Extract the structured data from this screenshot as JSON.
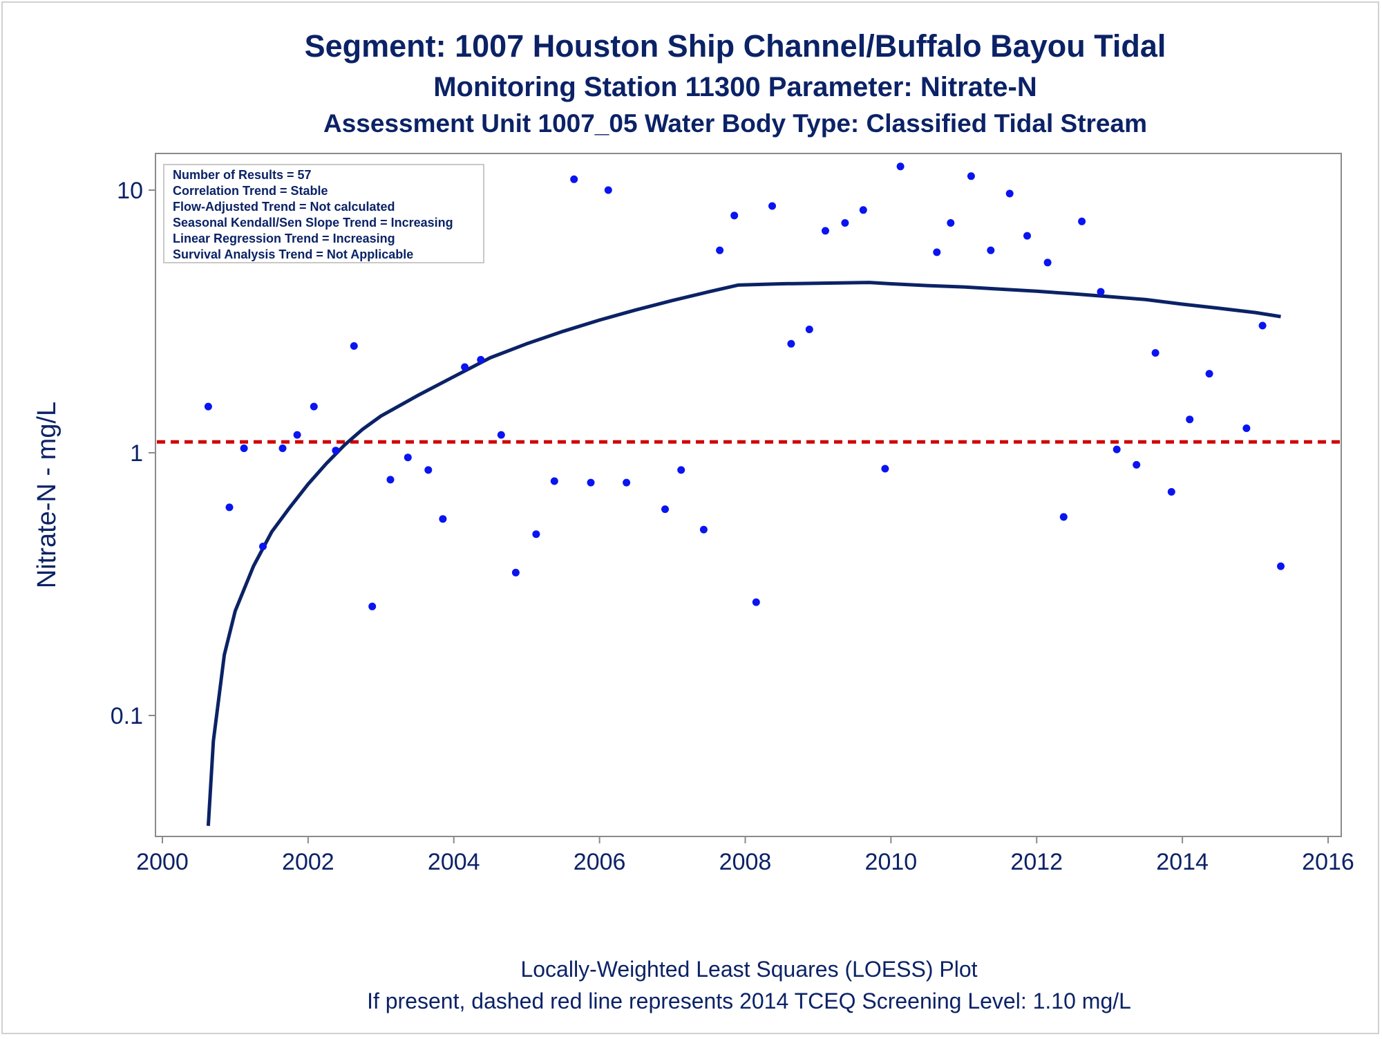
{
  "chart_data": {
    "type": "scatter",
    "title": "Segment: 1007  Houston Ship Channel/Buffalo Bayou Tidal",
    "subtitle": "Monitoring Station 11300 Parameter: Nitrate-N",
    "subtitle2": "Assessment Unit 1007_05   Water Body Type: Classified Tidal Stream",
    "ylabel": "Nitrate-N - mg/L",
    "xlabel": "",
    "xlim": [
      2000,
      2016
    ],
    "ylim": [
      0.038,
      14
    ],
    "yscale": "log",
    "x_ticks": [
      "2000",
      "2002",
      "2004",
      "2006",
      "2008",
      "2010",
      "2012",
      "2014",
      "2016"
    ],
    "y_ticks": [
      {
        "value": 0.1,
        "label": "0.1"
      },
      {
        "value": 1,
        "label": "1"
      },
      {
        "value": 10,
        "label": "10"
      }
    ],
    "grid": false,
    "footnote1": "Locally-Weighted Least Squares (LOESS) Plot",
    "footnote2": "If present, dashed red line represents 2014 TCEQ Screening Level: 1.10 mg/L",
    "screening_level": 1.1,
    "inset": [
      "Number of Results = 57",
      "Correlation Trend = Stable",
      "Flow-Adjusted Trend = Not calculated",
      "Seasonal Kendall/Sen Slope Trend = Increasing",
      "Linear Regression Trend = Increasing",
      "Survival Analysis Trend = Not Applicable"
    ],
    "points": [
      {
        "x": 2000.63,
        "y": 1.5
      },
      {
        "x": 2000.92,
        "y": 0.62
      },
      {
        "x": 2001.12,
        "y": 1.04
      },
      {
        "x": 2001.38,
        "y": 0.44
      },
      {
        "x": 2001.65,
        "y": 1.04
      },
      {
        "x": 2001.85,
        "y": 1.17
      },
      {
        "x": 2002.08,
        "y": 1.5
      },
      {
        "x": 2002.38,
        "y": 1.02
      },
      {
        "x": 2002.63,
        "y": 2.55
      },
      {
        "x": 2002.88,
        "y": 0.26
      },
      {
        "x": 2003.13,
        "y": 0.79
      },
      {
        "x": 2003.37,
        "y": 0.96
      },
      {
        "x": 2003.65,
        "y": 0.86
      },
      {
        "x": 2003.85,
        "y": 0.56
      },
      {
        "x": 2004.15,
        "y": 2.12
      },
      {
        "x": 2004.37,
        "y": 2.26
      },
      {
        "x": 2004.65,
        "y": 1.17
      },
      {
        "x": 2004.85,
        "y": 0.35
      },
      {
        "x": 2005.13,
        "y": 0.49
      },
      {
        "x": 2005.38,
        "y": 0.78
      },
      {
        "x": 2005.65,
        "y": 11.0
      },
      {
        "x": 2005.88,
        "y": 0.77
      },
      {
        "x": 2006.12,
        "y": 10.0
      },
      {
        "x": 2006.37,
        "y": 0.77
      },
      {
        "x": 2006.9,
        "y": 0.61
      },
      {
        "x": 2007.12,
        "y": 0.86
      },
      {
        "x": 2007.43,
        "y": 0.51
      },
      {
        "x": 2007.65,
        "y": 5.9
      },
      {
        "x": 2007.85,
        "y": 8.0
      },
      {
        "x": 2008.15,
        "y": 0.27
      },
      {
        "x": 2008.37,
        "y": 8.7
      },
      {
        "x": 2008.63,
        "y": 2.6
      },
      {
        "x": 2008.88,
        "y": 2.95
      },
      {
        "x": 2009.1,
        "y": 7.0
      },
      {
        "x": 2009.37,
        "y": 7.5
      },
      {
        "x": 2009.62,
        "y": 8.4
      },
      {
        "x": 2009.92,
        "y": 0.87
      },
      {
        "x": 2010.13,
        "y": 12.3
      },
      {
        "x": 2010.63,
        "y": 5.8
      },
      {
        "x": 2010.82,
        "y": 7.5
      },
      {
        "x": 2011.1,
        "y": 11.3
      },
      {
        "x": 2011.37,
        "y": 5.9
      },
      {
        "x": 2011.63,
        "y": 9.7
      },
      {
        "x": 2011.87,
        "y": 6.7
      },
      {
        "x": 2012.15,
        "y": 5.3
      },
      {
        "x": 2012.37,
        "y": 0.57
      },
      {
        "x": 2012.62,
        "y": 7.6
      },
      {
        "x": 2012.88,
        "y": 4.1
      },
      {
        "x": 2013.1,
        "y": 1.03
      },
      {
        "x": 2013.37,
        "y": 0.9
      },
      {
        "x": 2013.63,
        "y": 2.4
      },
      {
        "x": 2013.85,
        "y": 0.71
      },
      {
        "x": 2014.1,
        "y": 1.34
      },
      {
        "x": 2014.37,
        "y": 2.0
      },
      {
        "x": 2014.88,
        "y": 1.24
      },
      {
        "x": 2015.1,
        "y": 3.05
      },
      {
        "x": 2015.35,
        "y": 0.37
      }
    ],
    "loess": [
      {
        "x": 2000.63,
        "y": 0.038
      },
      {
        "x": 2000.7,
        "y": 0.08
      },
      {
        "x": 2000.85,
        "y": 0.17
      },
      {
        "x": 2001.0,
        "y": 0.25
      },
      {
        "x": 2001.25,
        "y": 0.37
      },
      {
        "x": 2001.5,
        "y": 0.5
      },
      {
        "x": 2001.75,
        "y": 0.62
      },
      {
        "x": 2002.0,
        "y": 0.76
      },
      {
        "x": 2002.25,
        "y": 0.91
      },
      {
        "x": 2002.5,
        "y": 1.07
      },
      {
        "x": 2002.75,
        "y": 1.23
      },
      {
        "x": 2003.0,
        "y": 1.38
      },
      {
        "x": 2003.5,
        "y": 1.65
      },
      {
        "x": 2004.0,
        "y": 1.95
      },
      {
        "x": 2004.5,
        "y": 2.3
      },
      {
        "x": 2005.0,
        "y": 2.6
      },
      {
        "x": 2005.5,
        "y": 2.9
      },
      {
        "x": 2006.0,
        "y": 3.2
      },
      {
        "x": 2006.5,
        "y": 3.5
      },
      {
        "x": 2007.0,
        "y": 3.8
      },
      {
        "x": 2007.5,
        "y": 4.1
      },
      {
        "x": 2007.9,
        "y": 4.35
      },
      {
        "x": 2008.5,
        "y": 4.4
      },
      {
        "x": 2009.0,
        "y": 4.42
      },
      {
        "x": 2009.7,
        "y": 4.45
      },
      {
        "x": 2010.0,
        "y": 4.4
      },
      {
        "x": 2010.5,
        "y": 4.33
      },
      {
        "x": 2011.0,
        "y": 4.28
      },
      {
        "x": 2011.5,
        "y": 4.2
      },
      {
        "x": 2012.0,
        "y": 4.12
      },
      {
        "x": 2012.5,
        "y": 4.03
      },
      {
        "x": 2013.0,
        "y": 3.93
      },
      {
        "x": 2013.5,
        "y": 3.83
      },
      {
        "x": 2014.0,
        "y": 3.68
      },
      {
        "x": 2014.5,
        "y": 3.55
      },
      {
        "x": 2015.0,
        "y": 3.42
      },
      {
        "x": 2015.35,
        "y": 3.3
      }
    ],
    "colors": {
      "text": "#0b2266",
      "points": "#0a14f0",
      "loess": "#0b2266",
      "screening": "#d00000",
      "axis": "#8a8a8a"
    }
  }
}
